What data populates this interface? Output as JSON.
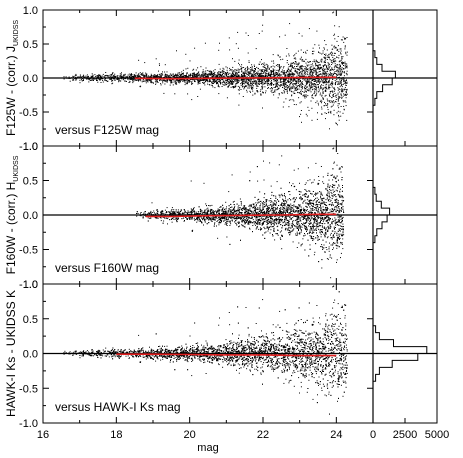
{
  "chart_data": {
    "type": "scatter",
    "shared_x": {
      "label": "mag",
      "range": [
        16,
        25
      ],
      "ticks": [
        16,
        18,
        20,
        22,
        24
      ],
      "tick_labels": [
        "16",
        "18",
        "20",
        "22",
        "24"
      ]
    },
    "histogram_x": {
      "range": [
        0,
        5000
      ],
      "ticks": [
        0,
        2500,
        5000
      ],
      "tick_labels": [
        "0",
        "2500",
        "5000"
      ]
    },
    "colors": {
      "points": "#000000",
      "median_line": "#e02020",
      "zero_line": "#000000"
    },
    "y_ticks": [
      -1.0,
      -0.5,
      0.0,
      0.5,
      1.0
    ],
    "y_tick_labels": [
      "-1.0",
      "-0.5",
      "0.0",
      "0.5",
      "1.0"
    ],
    "panels": [
      {
        "ylabel": "F125W - (corr.) J",
        "ylabel_sub": "UKIDSS",
        "annotation": "versus F125W mag",
        "ylim": [
          -1.0,
          1.0
        ],
        "envelope": [
          [
            16.5,
            0.025
          ],
          [
            18.0,
            0.03
          ],
          [
            19.0,
            0.035
          ],
          [
            20.0,
            0.045
          ],
          [
            21.0,
            0.065
          ],
          [
            22.0,
            0.1
          ],
          [
            22.8,
            0.14
          ],
          [
            23.4,
            0.19
          ],
          [
            23.8,
            0.24
          ],
          [
            24.1,
            0.28
          ],
          [
            24.3,
            0.3
          ]
        ],
        "median": [
          [
            18.5,
            -0.005
          ],
          [
            19.5,
            -0.01
          ],
          [
            20.5,
            -0.005
          ],
          [
            21.5,
            0.0
          ],
          [
            22.5,
            0.005
          ],
          [
            23.5,
            0.01
          ],
          [
            24.0,
            0.01
          ]
        ],
        "histogram": [
          [
            -0.35,
            150
          ],
          [
            -0.25,
            300
          ],
          [
            -0.15,
            750
          ],
          [
            -0.05,
            1500
          ],
          [
            0.05,
            1750
          ],
          [
            0.15,
            700
          ],
          [
            0.25,
            300
          ],
          [
            0.35,
            150
          ]
        ]
      },
      {
        "ylabel": "F160W - (corr.) H",
        "ylabel_sub": "UKIDSS",
        "annotation": "versus F160W mag",
        "ylim": [
          -1.0,
          1.0
        ],
        "envelope": [
          [
            18.5,
            0.03
          ],
          [
            19.0,
            0.035
          ],
          [
            20.0,
            0.045
          ],
          [
            21.0,
            0.07
          ],
          [
            22.0,
            0.11
          ],
          [
            22.8,
            0.16
          ],
          [
            23.3,
            0.2
          ],
          [
            23.7,
            0.27
          ],
          [
            24.0,
            0.32
          ],
          [
            24.2,
            0.36
          ]
        ],
        "median": [
          [
            18.8,
            -0.02
          ],
          [
            19.5,
            -0.02
          ],
          [
            20.5,
            -0.01
          ],
          [
            21.5,
            -0.005
          ],
          [
            22.5,
            0.0
          ],
          [
            23.5,
            0.01
          ],
          [
            24.0,
            0.01
          ]
        ],
        "histogram": [
          [
            -0.35,
            150
          ],
          [
            -0.25,
            300
          ],
          [
            -0.15,
            700
          ],
          [
            -0.05,
            1100
          ],
          [
            0.05,
            1300
          ],
          [
            0.15,
            650
          ],
          [
            0.25,
            250
          ],
          [
            0.35,
            150
          ]
        ]
      },
      {
        "ylabel": "HAWK-I Ks - UKIDSS K",
        "ylabel_sub": "",
        "annotation": "versus HAWK-I Ks mag",
        "ylim": [
          -1.0,
          1.0
        ],
        "envelope": [
          [
            16.5,
            0.02
          ],
          [
            18.0,
            0.03
          ],
          [
            19.0,
            0.04
          ],
          [
            20.0,
            0.055
          ],
          [
            21.0,
            0.08
          ],
          [
            22.0,
            0.12
          ],
          [
            22.8,
            0.17
          ],
          [
            23.4,
            0.22
          ],
          [
            23.8,
            0.28
          ],
          [
            24.1,
            0.33
          ],
          [
            24.3,
            0.36
          ]
        ],
        "median": [
          [
            18.0,
            -0.01
          ],
          [
            19.0,
            -0.01
          ],
          [
            20.0,
            -0.015
          ],
          [
            21.0,
            -0.02
          ],
          [
            22.0,
            -0.02
          ],
          [
            23.0,
            -0.03
          ],
          [
            24.0,
            -0.03
          ]
        ],
        "histogram": [
          [
            -0.35,
            200
          ],
          [
            -0.25,
            500
          ],
          [
            -0.15,
            1500
          ],
          [
            -0.05,
            3500
          ],
          [
            0.05,
            4200
          ],
          [
            0.15,
            1600
          ],
          [
            0.25,
            500
          ],
          [
            0.35,
            200
          ]
        ]
      }
    ]
  }
}
